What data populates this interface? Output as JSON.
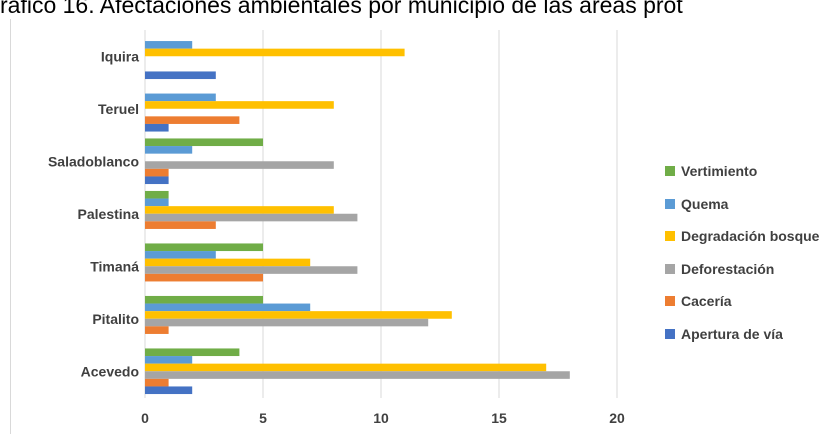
{
  "title": "ráfico 16. Afectaciones ambientales por municipio de las áreas prot",
  "chart_data": {
    "type": "bar",
    "orientation": "horizontal",
    "categories": [
      "Iquira",
      "Teruel",
      "Saladoblanco",
      "Palestina",
      "Timaná",
      "Pitalito",
      "Acevedo"
    ],
    "series": [
      {
        "name": "Vertimiento",
        "color": "#70ad47",
        "values": [
          0,
          0,
          5,
          1,
          5,
          5,
          4
        ]
      },
      {
        "name": "Quema",
        "color": "#5b9bd5",
        "values": [
          2,
          3,
          2,
          1,
          3,
          7,
          2
        ]
      },
      {
        "name": "Degradación bosque",
        "color": "#ffc000",
        "values": [
          11,
          8,
          0,
          8,
          7,
          13,
          17
        ]
      },
      {
        "name": "Deforestación",
        "color": "#a5a5a5",
        "values": [
          0,
          0,
          8,
          9,
          9,
          12,
          18
        ]
      },
      {
        "name": "Cacería",
        "color": "#ed7d31",
        "values": [
          0,
          4,
          1,
          3,
          5,
          1,
          1
        ]
      },
      {
        "name": "Apertura de vía",
        "color": "#4472c4",
        "values": [
          3,
          1,
          1,
          0,
          0,
          0,
          2
        ]
      }
    ],
    "xlim": [
      0,
      20
    ],
    "xticks": [
      0,
      5,
      10,
      15,
      20
    ],
    "grid": true,
    "legend_position": "right"
  }
}
